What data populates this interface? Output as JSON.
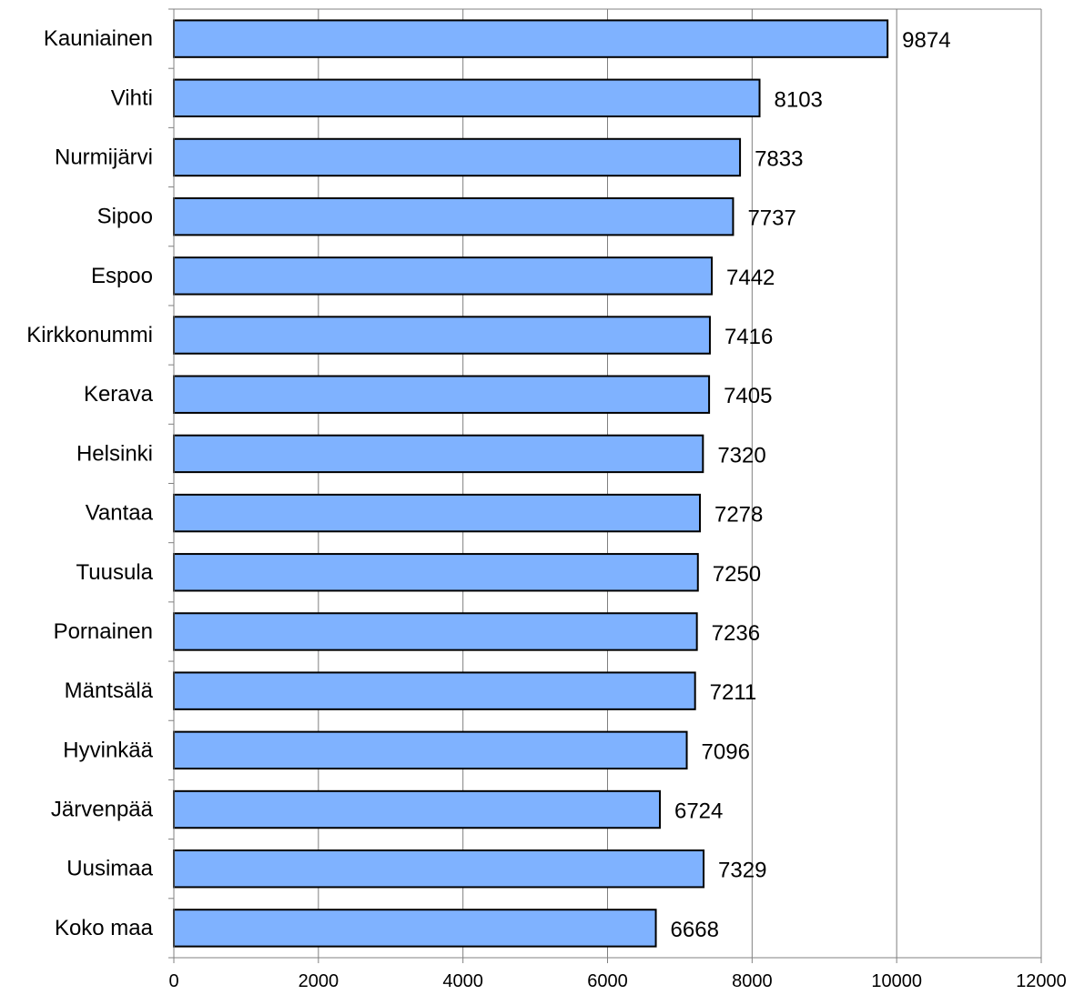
{
  "chart_data": {
    "type": "bar",
    "orientation": "horizontal",
    "categories": [
      "Kauniainen",
      "Vihti",
      "Nurmijärvi",
      "Sipoo",
      "Espoo",
      "Kirkkonummi",
      "Kerava",
      "Helsinki",
      "Vantaa",
      "Tuusula",
      "Pornainen",
      "Mäntsälä",
      "Hyvinkää",
      "Järvenpää",
      "Uusimaa",
      "Koko maa"
    ],
    "values": [
      9874,
      8103,
      7833,
      7737,
      7442,
      7416,
      7405,
      7320,
      7278,
      7250,
      7236,
      7211,
      7096,
      6724,
      7329,
      6668
    ],
    "value_labels": [
      "9874",
      "8103",
      "7833",
      "7737",
      "7442",
      "7416",
      "7405",
      "7320",
      "7278",
      "7250",
      "7236",
      "7211",
      "7096",
      "6724",
      "7329",
      "6668"
    ],
    "x_ticks": [
      0,
      2000,
      4000,
      6000,
      8000,
      10000,
      12000
    ],
    "x_tick_labels": [
      "0",
      "2000",
      "4000",
      "6000",
      "8000",
      "10000",
      "12000"
    ],
    "xlim": [
      0,
      12000
    ],
    "title": "",
    "xlabel": "",
    "ylabel": "",
    "grid": "vertical",
    "legend": "none",
    "colors": {
      "bar_fill": "#7fb2ff",
      "bar_stroke": "#000000",
      "grid": "#808080",
      "axis": "#808080"
    }
  }
}
